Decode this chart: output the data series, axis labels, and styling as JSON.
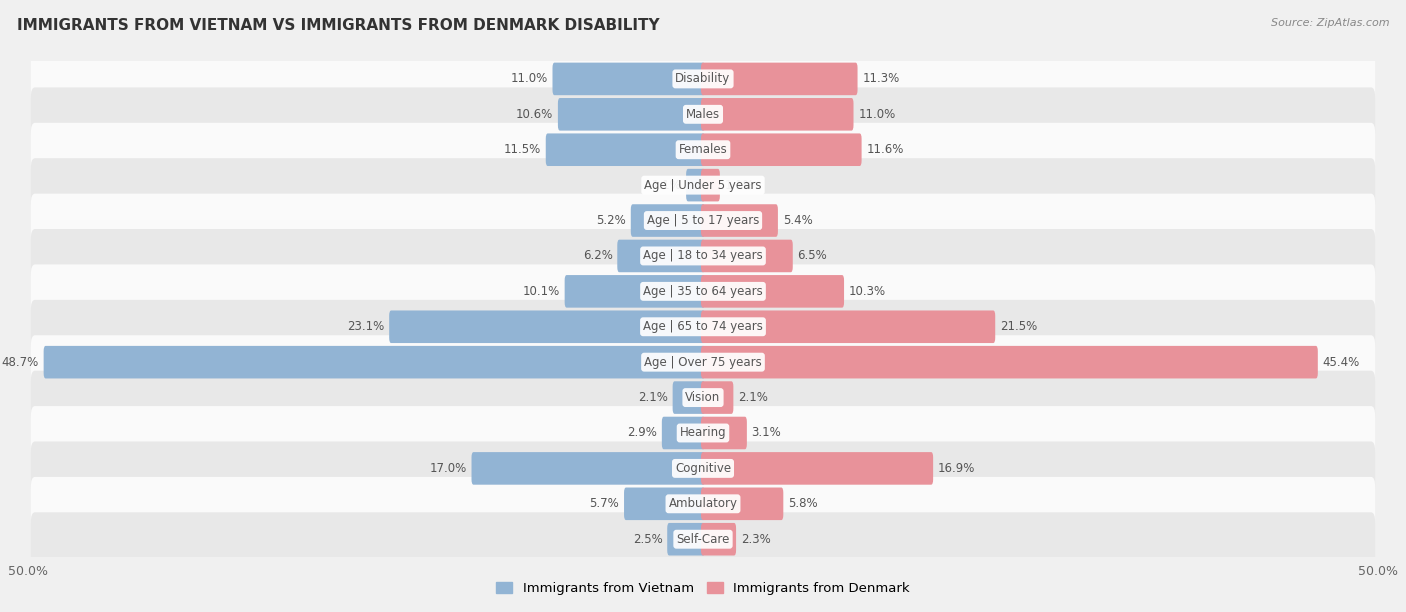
{
  "title": "IMMIGRANTS FROM VIETNAM VS IMMIGRANTS FROM DENMARK DISABILITY",
  "source": "Source: ZipAtlas.com",
  "categories": [
    "Disability",
    "Males",
    "Females",
    "Age | Under 5 years",
    "Age | 5 to 17 years",
    "Age | 18 to 34 years",
    "Age | 35 to 64 years",
    "Age | 65 to 74 years",
    "Age | Over 75 years",
    "Vision",
    "Hearing",
    "Cognitive",
    "Ambulatory",
    "Self-Care"
  ],
  "vietnam_values": [
    11.0,
    10.6,
    11.5,
    1.1,
    5.2,
    6.2,
    10.1,
    23.1,
    48.7,
    2.1,
    2.9,
    17.0,
    5.7,
    2.5
  ],
  "denmark_values": [
    11.3,
    11.0,
    11.6,
    1.1,
    5.4,
    6.5,
    10.3,
    21.5,
    45.4,
    2.1,
    3.1,
    16.9,
    5.8,
    2.3
  ],
  "vietnam_color": "#92b4d4",
  "denmark_color": "#e8929a",
  "background_color": "#f0f0f0",
  "row_color_light": "#fafafa",
  "row_color_dark": "#e8e8e8",
  "axis_limit": 50.0,
  "legend_labels": [
    "Immigrants from Vietnam",
    "Immigrants from Denmark"
  ],
  "label_fontsize": 8.5,
  "value_fontsize": 8.5,
  "title_fontsize": 11
}
